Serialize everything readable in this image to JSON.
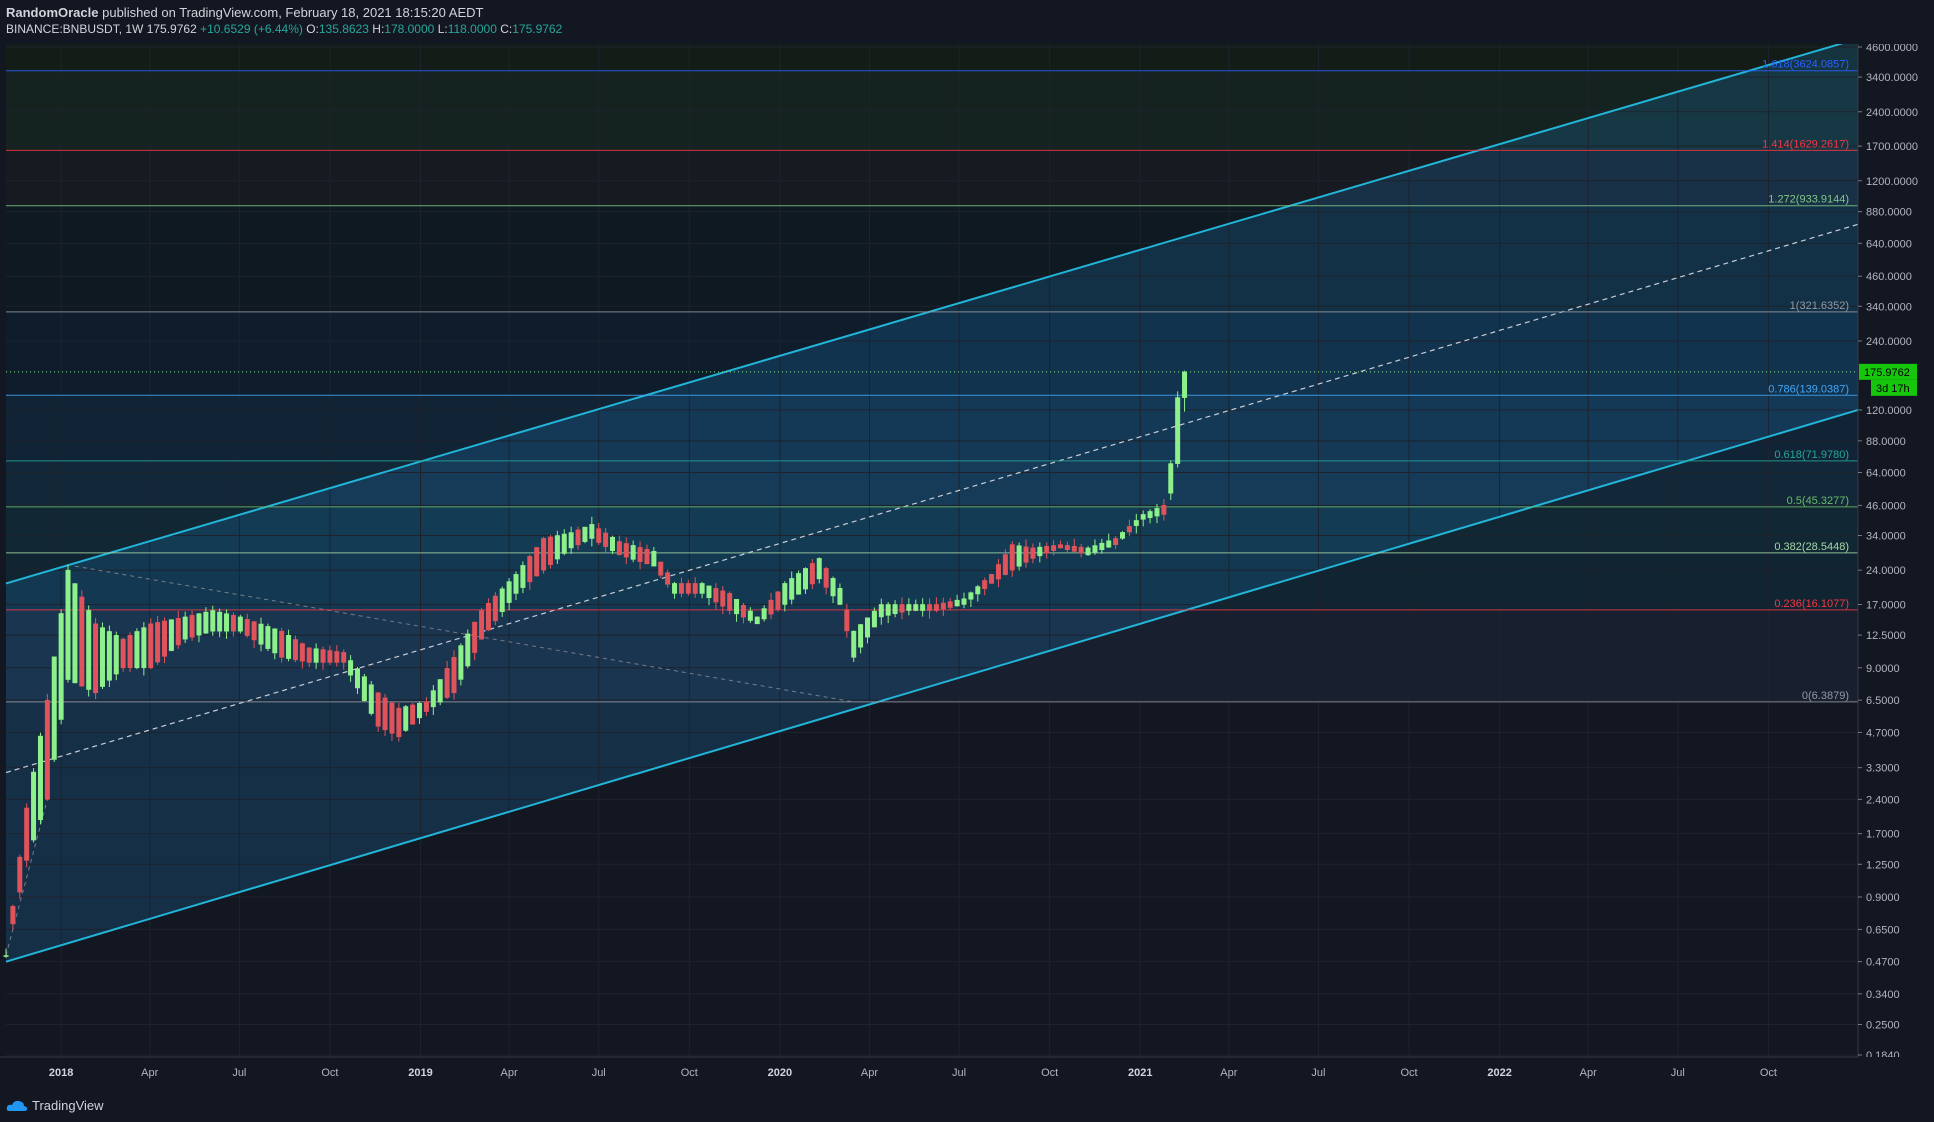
{
  "header": {
    "author": "RandomOracle",
    "published": "published on TradingView.com, February 18, 2021 18:15:20 AEDT",
    "symbol": "BINANCE:BNBUSDT, 1W",
    "last": "175.9762",
    "change": "+10.6529 (+6.44%)",
    "open_label": "O:",
    "open": "135.8623",
    "high_label": "H:",
    "high": "178.0000",
    "low_label": "L:",
    "low": "118.0000",
    "close_label": "C:",
    "close": "175.9762"
  },
  "footer": {
    "brand": "TradingView"
  },
  "colors": {
    "up": "#8ef08a",
    "down": "#e0535a",
    "channel": "#22b5d8",
    "bg": "#131722"
  },
  "chart_data": {
    "type": "candlestick",
    "scale": "log",
    "x_axis_labels": [
      "2018",
      "Apr",
      "Jul",
      "Oct",
      "2019",
      "Apr",
      "Jul",
      "Oct",
      "2020",
      "Apr",
      "Jul",
      "Oct",
      "2021",
      "Apr",
      "Jul",
      "Oct",
      "2022",
      "Apr",
      "Jul",
      "Oct"
    ],
    "x_axis_dates": [
      "2018-01-01",
      "2018-04-01",
      "2018-07-01",
      "2018-10-01",
      "2019-01-01",
      "2019-04-01",
      "2019-07-01",
      "2019-10-01",
      "2020-01-01",
      "2020-04-01",
      "2020-07-01",
      "2020-10-01",
      "2021-01-01",
      "2021-04-01",
      "2021-07-01",
      "2021-10-01",
      "2022-01-01",
      "2022-04-01",
      "2022-07-01",
      "2022-10-01"
    ],
    "y_axis_labels": [
      "4600.0000",
      "3400.0000",
      "2400.0000",
      "1700.0000",
      "1200.0000",
      "880.0000",
      "640.0000",
      "460.0000",
      "340.0000",
      "240.0000",
      "120.0000",
      "88.0000",
      "64.0000",
      "46.0000",
      "34.0000",
      "24.0000",
      "17.0000",
      "12.5000",
      "9.0000",
      "6.5000",
      "4.7000",
      "3.3000",
      "2.4000",
      "1.7000",
      "1.2500",
      "0.9000",
      "0.6500",
      "0.4700",
      "0.3400",
      "0.2500",
      "0.1840"
    ],
    "y_axis_values": [
      4600,
      3400,
      2400,
      1700,
      1200,
      880,
      640,
      460,
      340,
      240,
      120,
      88,
      64,
      46,
      34,
      24,
      17,
      12.5,
      9,
      6.5,
      4.7,
      3.3,
      2.4,
      1.7,
      1.25,
      0.9,
      0.65,
      0.47,
      0.34,
      0.25,
      0.184
    ],
    "last_price": {
      "label": "175.9762",
      "value": 175.9762,
      "countdown": "3d 17h"
    },
    "fib_levels": [
      {
        "label": "1.618(3624.0857)",
        "value": 3624.0857,
        "color": "#2962ff"
      },
      {
        "label": "1.414(1629.2617)",
        "value": 1629.2617,
        "color": "#f23645"
      },
      {
        "label": "1.272(933.9144)",
        "value": 933.9144,
        "color": "#81c784"
      },
      {
        "label": "1(321.6352)",
        "value": 321.6352,
        "color": "#9598a1"
      },
      {
        "label": "0.786(139.0387)",
        "value": 139.0387,
        "color": "#42a5f5"
      },
      {
        "label": "0.618(71.9780)",
        "value": 71.978,
        "color": "#26a69a"
      },
      {
        "label": "0.5(45.3277)",
        "value": 45.3277,
        "color": "#66bb6a"
      },
      {
        "label": "0.382(28.5448)",
        "value": 28.5448,
        "color": "#a5d6a7"
      },
      {
        "label": "0.236(16.1077)",
        "value": 16.1077,
        "color": "#f23645"
      },
      {
        "label": "0(6.3879)",
        "value": 6.3879,
        "color": "#9598a1"
      }
    ],
    "channel": {
      "lower": [
        [
          "2017-11-06",
          0.47
        ],
        [
          "2022-12-31",
          120
        ]
      ],
      "upper": [
        [
          "2017-11-06",
          21
        ],
        [
          "2022-12-31",
          5000
        ]
      ]
    },
    "anchors": [
      [
        "2017-11-06",
        0.5,
        0.5
      ],
      [
        "2017-11-27",
        1.3,
        2.2
      ],
      [
        "2017-12-18",
        2.4,
        6.5
      ],
      [
        "2018-01-08",
        8,
        24
      ],
      [
        "2018-02-05",
        7,
        14
      ],
      [
        "2018-03-05",
        9,
        12
      ],
      [
        "2018-04-02",
        9,
        14
      ],
      [
        "2018-05-07",
        12,
        15
      ],
      [
        "2018-06-04",
        13,
        16
      ],
      [
        "2018-07-02",
        13,
        15
      ],
      [
        "2018-08-13",
        10,
        13
      ],
      [
        "2018-09-10",
        9.5,
        11
      ],
      [
        "2018-10-15",
        9.5,
        10.5
      ],
      [
        "2018-11-19",
        5,
        7
      ],
      [
        "2018-12-10",
        4.5,
        6
      ],
      [
        "2019-01-07",
        5.8,
        6.4
      ],
      [
        "2019-02-04",
        7,
        10
      ],
      [
        "2019-03-04",
        12,
        16
      ],
      [
        "2019-04-08",
        19,
        23
      ],
      [
        "2019-05-06",
        24,
        33
      ],
      [
        "2019-06-03",
        30,
        35
      ],
      [
        "2019-06-24",
        33,
        38
      ],
      [
        "2019-07-22",
        28,
        32
      ],
      [
        "2019-08-26",
        25,
        29
      ],
      [
        "2019-09-16",
        19,
        21
      ],
      [
        "2019-10-14",
        19,
        21
      ],
      [
        "2019-11-11",
        16,
        19
      ],
      [
        "2019-12-09",
        14,
        15
      ],
      [
        "2020-01-06",
        17,
        21
      ],
      [
        "2020-02-10",
        22,
        27
      ],
      [
        "2020-03-02",
        17,
        20
      ],
      [
        "2020-03-16",
        10,
        13
      ],
      [
        "2020-04-13",
        15,
        17
      ],
      [
        "2020-05-11",
        16,
        17
      ],
      [
        "2020-06-08",
        16,
        17
      ],
      [
        "2020-07-06",
        17,
        18
      ],
      [
        "2020-08-03",
        21,
        23
      ],
      [
        "2020-08-24",
        24,
        31
      ],
      [
        "2020-09-14",
        27,
        30
      ],
      [
        "2020-10-12",
        30,
        31
      ],
      [
        "2020-11-09",
        28,
        30
      ],
      [
        "2020-12-07",
        31,
        33
      ],
      [
        "2021-01-04",
        40,
        42
      ],
      [
        "2021-01-25",
        42,
        46
      ],
      [
        "2021-02-01",
        52,
        70
      ],
      [
        "2021-02-08",
        70,
        135.86
      ],
      [
        "2021-02-15",
        135.8623,
        175.9762
      ]
    ]
  }
}
